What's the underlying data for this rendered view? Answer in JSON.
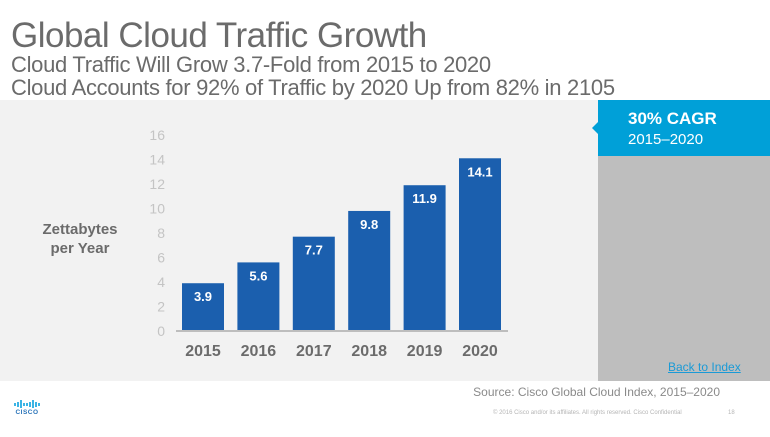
{
  "header": {
    "title": "Global Cloud Traffic Growth",
    "subtitle1": "Cloud Traffic Will Grow 3.7-Fold from 2015 to 2020",
    "subtitle2": "Cloud Accounts for 92% of Traffic by 2020 Up from 82% in 2105"
  },
  "side_panel": {
    "headline": "30% CAGR",
    "period": "2015–2020",
    "back_link": "Back to Index"
  },
  "footer": {
    "source": "Source: Cisco Global Cloud Index, 2015–2020",
    "copyright": "© 2016  Cisco and/or its affiliates. All rights reserved.   Cisco Confidential",
    "page_number": "18",
    "logo_text": "CISCO"
  },
  "colors": {
    "bar": "#1b5fae",
    "accent": "#00a0d8",
    "panel_gray": "#bebebe"
  },
  "chart_data": {
    "type": "bar",
    "title": "",
    "xlabel": "",
    "ylabel": "Zettabytes per Year",
    "ylabel_line1": "Zettabytes",
    "ylabel_line2": "per Year",
    "categories": [
      "2015",
      "2016",
      "2017",
      "2018",
      "2019",
      "2020"
    ],
    "values": [
      3.9,
      5.6,
      7.7,
      9.8,
      11.9,
      14.1
    ],
    "data_labels": [
      "3.9",
      "5.6",
      "7.7",
      "9.8",
      "11.9",
      "14.1"
    ],
    "ylim": [
      0,
      16
    ],
    "yticks": [
      0,
      2,
      4,
      6,
      8,
      10,
      12,
      14,
      16
    ],
    "grid": false,
    "legend": "none"
  }
}
